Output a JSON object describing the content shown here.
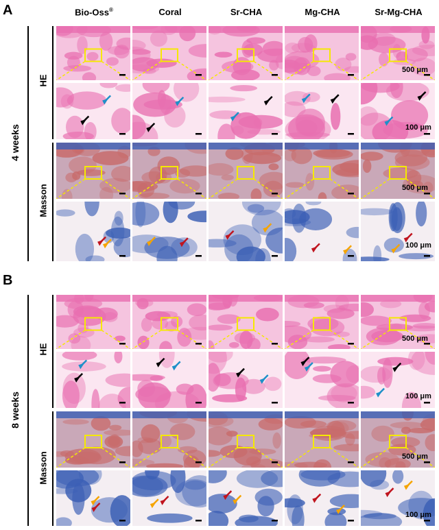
{
  "panels": [
    {
      "letter": "A",
      "time": "4 weeks",
      "stains": [
        "HE",
        "Masson"
      ]
    },
    {
      "letter": "B",
      "time": "8 weeks",
      "stains": [
        "HE",
        "Masson"
      ]
    }
  ],
  "columns": [
    {
      "name": "Bio-Oss",
      "sup": "®"
    },
    {
      "name": "Coral",
      "sup": ""
    },
    {
      "name": "Sr-CHA",
      "sup": ""
    },
    {
      "name": "Mg-CHA",
      "sup": ""
    },
    {
      "name": "Sr-Mg-CHA",
      "sup": ""
    }
  ],
  "scale_bars": {
    "overview": "500 μm",
    "zoom": "100 μm"
  },
  "colors": {
    "he_pink": "#e86fb0",
    "he_light": "#f5c4df",
    "masson_blue": "#3b5fb5",
    "masson_red": "#c86b6b",
    "highlight_box": "#f5e900",
    "arrow_black": "#000000",
    "arrow_blue": "#1e90c8",
    "arrow_red": "#c0141e",
    "arrow_yellow": "#f5a400"
  }
}
